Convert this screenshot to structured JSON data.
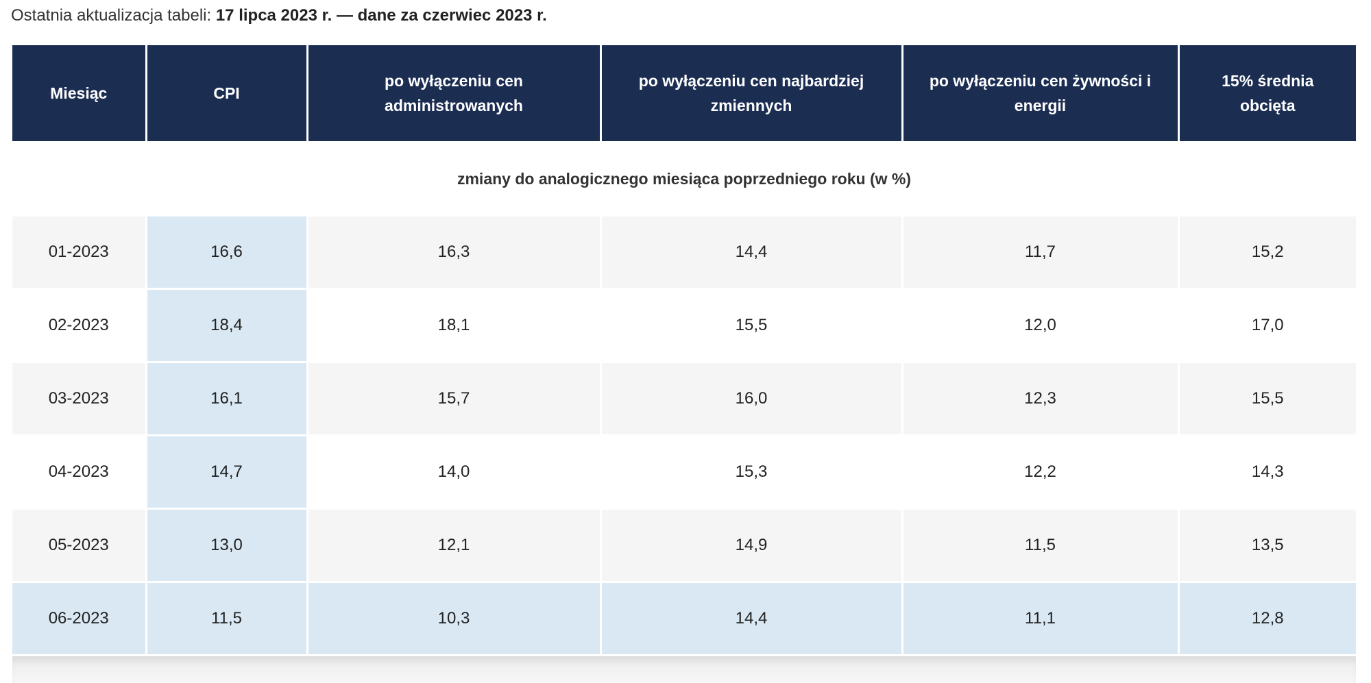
{
  "update": {
    "prefix": "Ostatnia aktualizacja tabeli: ",
    "date_text": "17 lipca 2023 r. — dane za czerwiec 2023 r."
  },
  "table": {
    "headers": [
      "Miesiąc",
      "CPI",
      "po wyłączeniu cen administrowanych",
      "po wyłączeniu cen najbardziej zmiennych",
      "po wyłączeniu cen żywności i energii",
      "15% średnia obcięta"
    ],
    "section_label": "zmiany do analogicznego miesiąca poprzedniego roku (w %)",
    "rows": [
      [
        "01-2023",
        "16,6",
        "16,3",
        "14,4",
        "11,7",
        "15,2"
      ],
      [
        "02-2023",
        "18,4",
        "18,1",
        "15,5",
        "12,0",
        "17,0"
      ],
      [
        "03-2023",
        "16,1",
        "15,7",
        "16,0",
        "12,3",
        "15,5"
      ],
      [
        "04-2023",
        "14,7",
        "14,0",
        "15,3",
        "12,2",
        "14,3"
      ],
      [
        "05-2023",
        "13,0",
        "12,1",
        "14,9",
        "11,5",
        "13,5"
      ],
      [
        "06-2023",
        "11,5",
        "10,3",
        "14,4",
        "11,1",
        "12,8"
      ]
    ]
  },
  "colors": {
    "header_bg": "#1c2d52",
    "highlight_bg": "#d9e8f3",
    "stripe_bg": "#f5f5f5"
  }
}
